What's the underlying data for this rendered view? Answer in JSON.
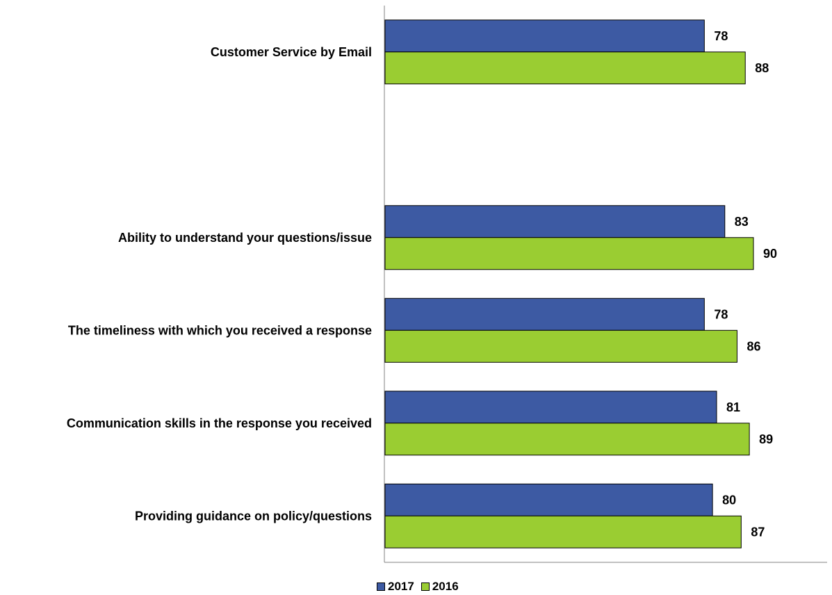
{
  "chart_data": {
    "type": "bar",
    "orientation": "horizontal",
    "categories": [
      "Customer Service by Email",
      "",
      "Ability to understand your questions/issue",
      "The timeliness with which you received a response",
      "Communication skills in the response you received",
      "Providing guidance on policy/questions"
    ],
    "series": [
      {
        "name": "2017",
        "color": "#3d5aa3",
        "values": [
          78,
          null,
          83,
          78,
          81,
          80
        ]
      },
      {
        "name": "2016",
        "color": "#9acd32",
        "values": [
          88,
          null,
          90,
          86,
          89,
          87
        ]
      }
    ],
    "xlim": [
      0,
      108
    ],
    "grid": false,
    "legend_position": "bottom"
  }
}
